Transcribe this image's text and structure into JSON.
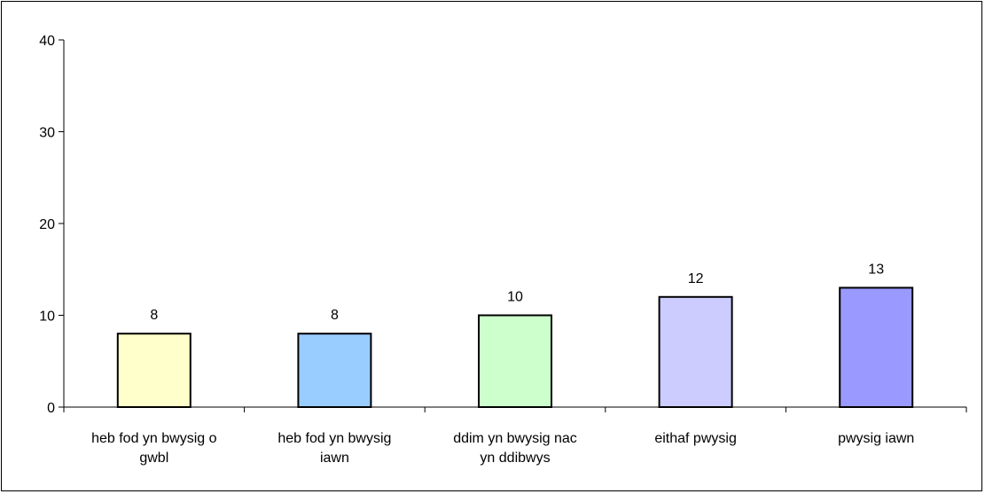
{
  "chart_data": {
    "type": "bar",
    "title": "",
    "xlabel": "",
    "ylabel": "",
    "ylim": [
      0,
      40
    ],
    "yticks": [
      0,
      10,
      20,
      30,
      40
    ],
    "grid": false,
    "legend": "none",
    "categories": [
      [
        "heb fod yn bwysig o",
        "gwbl"
      ],
      [
        "heb fod yn bwysig",
        "iawn"
      ],
      [
        "ddim yn bwysig nac",
        "yn ddibwys"
      ],
      [
        "eithaf pwysig"
      ],
      [
        "pwysig iawn"
      ]
    ],
    "values": [
      8,
      8,
      10,
      12,
      13
    ],
    "colors": [
      "#ffffcc",
      "#99ccff",
      "#ccffcc",
      "#ccccff",
      "#9999ff"
    ]
  }
}
